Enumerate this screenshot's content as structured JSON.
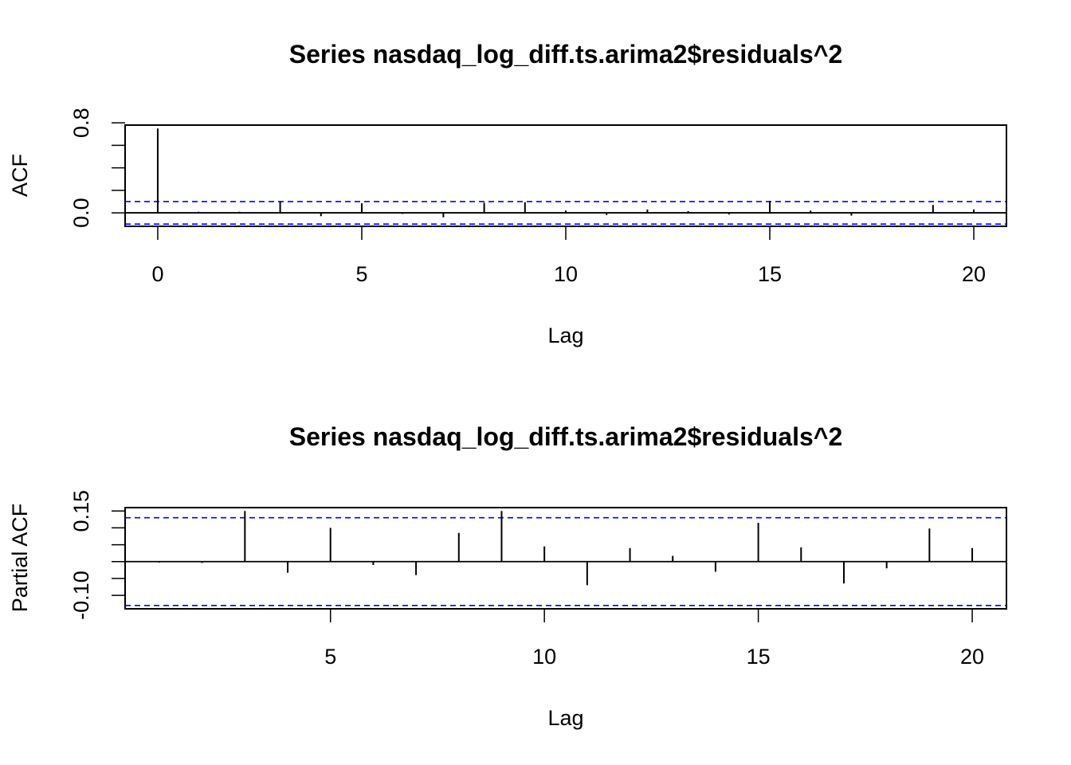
{
  "chart_data": [
    {
      "type": "bar",
      "title": "Series  nasdaq_log_diff.ts.arima2$residuals^2",
      "xlabel": "Lag",
      "ylabel": "ACF",
      "xlim": [
        -0.8,
        20.8
      ],
      "ylim": [
        -0.12,
        0.78
      ],
      "x_ticks": [
        0,
        5,
        10,
        15,
        20
      ],
      "y_ticks": [
        0.0,
        0.2,
        0.4,
        0.6,
        0.8
      ],
      "y_tick_labels": [
        {
          "value": 0.0,
          "label": "0.0"
        },
        {
          "value": 0.8,
          "label": "0.8"
        }
      ],
      "ci": 0.1,
      "ci_color": "#0000ff",
      "lags": [
        0,
        1,
        2,
        3,
        4,
        5,
        6,
        7,
        8,
        9,
        10,
        11,
        12,
        13,
        14,
        15,
        16,
        17,
        18,
        19,
        20
      ],
      "values": [
        0.75,
        0.01,
        0.01,
        0.1,
        -0.03,
        0.085,
        -0.01,
        -0.04,
        0.09,
        0.095,
        0.02,
        -0.02,
        0.03,
        0.015,
        -0.015,
        0.105,
        0.02,
        -0.025,
        0.005,
        0.07,
        0.03
      ]
    },
    {
      "type": "bar",
      "title": "Series  nasdaq_log_diff.ts.arima2$residuals^2",
      "xlabel": "Lag",
      "ylabel": "Partial ACF",
      "xlim": [
        0.2,
        20.8
      ],
      "ylim": [
        -0.14,
        0.16
      ],
      "x_ticks": [
        5,
        10,
        15,
        20
      ],
      "y_ticks": [
        -0.1,
        -0.05,
        0.0,
        0.05,
        0.1,
        0.15
      ],
      "y_tick_labels": [
        {
          "value": -0.1,
          "label": "-0.10"
        },
        {
          "value": 0.15,
          "label": "0.15"
        }
      ],
      "ci": 0.13,
      "ci_color": "#0000ff",
      "lags": [
        1,
        2,
        3,
        4,
        5,
        6,
        7,
        8,
        9,
        10,
        11,
        12,
        13,
        14,
        15,
        16,
        17,
        18,
        19,
        20
      ],
      "values": [
        -0.003,
        -0.004,
        0.15,
        -0.033,
        0.1,
        -0.01,
        -0.04,
        0.085,
        0.15,
        0.045,
        -0.07,
        0.04,
        0.017,
        -0.03,
        0.115,
        0.042,
        -0.065,
        -0.02,
        0.098,
        0.04
      ]
    }
  ]
}
